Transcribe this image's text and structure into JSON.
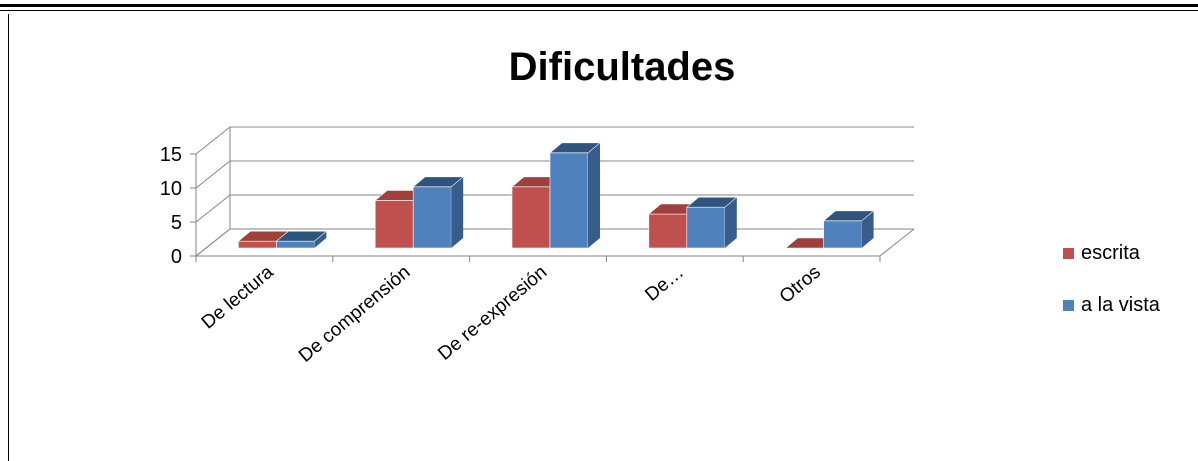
{
  "chart_data": {
    "type": "bar",
    "title": "Dificultades",
    "categories": [
      "De lectura",
      "De comprensión",
      "De re-expresión",
      "De…",
      "Otros"
    ],
    "series": [
      {
        "name": "escrita",
        "values": [
          1,
          7,
          9,
          5,
          0
        ],
        "color": "#c0504d",
        "side_color": "#8c3836",
        "top_color": "#a0403d"
      },
      {
        "name": "a la vista",
        "values": [
          1,
          9,
          14,
          6,
          4
        ],
        "color": "#4f81bd",
        "side_color": "#385d8a",
        "top_color": "#2f557f"
      }
    ],
    "yticks": [
      0,
      5,
      10,
      15
    ],
    "ylim": [
      0,
      15
    ],
    "grid": true,
    "legend_position": "right",
    "style": "3d-clustered-column"
  }
}
